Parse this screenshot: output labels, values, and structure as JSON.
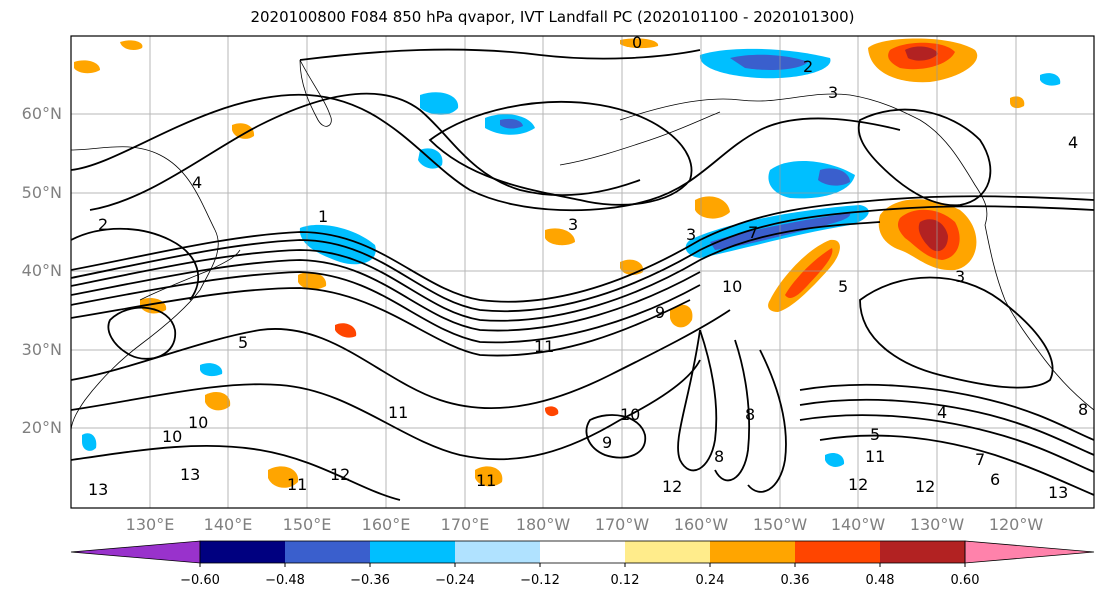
{
  "title": "2020100800 F084 850 hPa qvapor, IVT Landfall PC (2020101100 - 2020101300)",
  "map": {
    "latitude_labels": [
      "60°N",
      "50°N",
      "40°N",
      "30°N",
      "20°N"
    ],
    "longitude_labels": [
      "130°E",
      "140°E",
      "150°E",
      "160°E",
      "170°E",
      "180°W",
      "170°W",
      "160°W",
      "150°W",
      "140°W",
      "130°W",
      "120°W"
    ],
    "contour_labels": [
      "0",
      "2",
      "3",
      "4",
      "2",
      "1",
      "3",
      "3",
      "7",
      "10",
      "5",
      "9",
      "11",
      "5",
      "4",
      "3",
      "10",
      "10",
      "11",
      "13",
      "12",
      "11",
      "12",
      "13",
      "11",
      "10",
      "9",
      "8",
      "8",
      "12",
      "4",
      "5",
      "7",
      "6",
      "11",
      "12",
      "13",
      "8"
    ]
  },
  "colorbar": {
    "tick_labels": [
      "−0.60",
      "−0.48",
      "−0.36",
      "−0.24",
      "−0.12",
      "0.12",
      "0.24",
      "0.36",
      "0.48",
      "0.60"
    ],
    "colors": [
      "#9932CC",
      "#000080",
      "#3A5FCD",
      "#00BFFF",
      "#B0E2FF",
      "#FFFFFF",
      "#FFEC8B",
      "#FFA500",
      "#FF4500",
      "#B22222",
      "#FF82AB"
    ]
  }
}
